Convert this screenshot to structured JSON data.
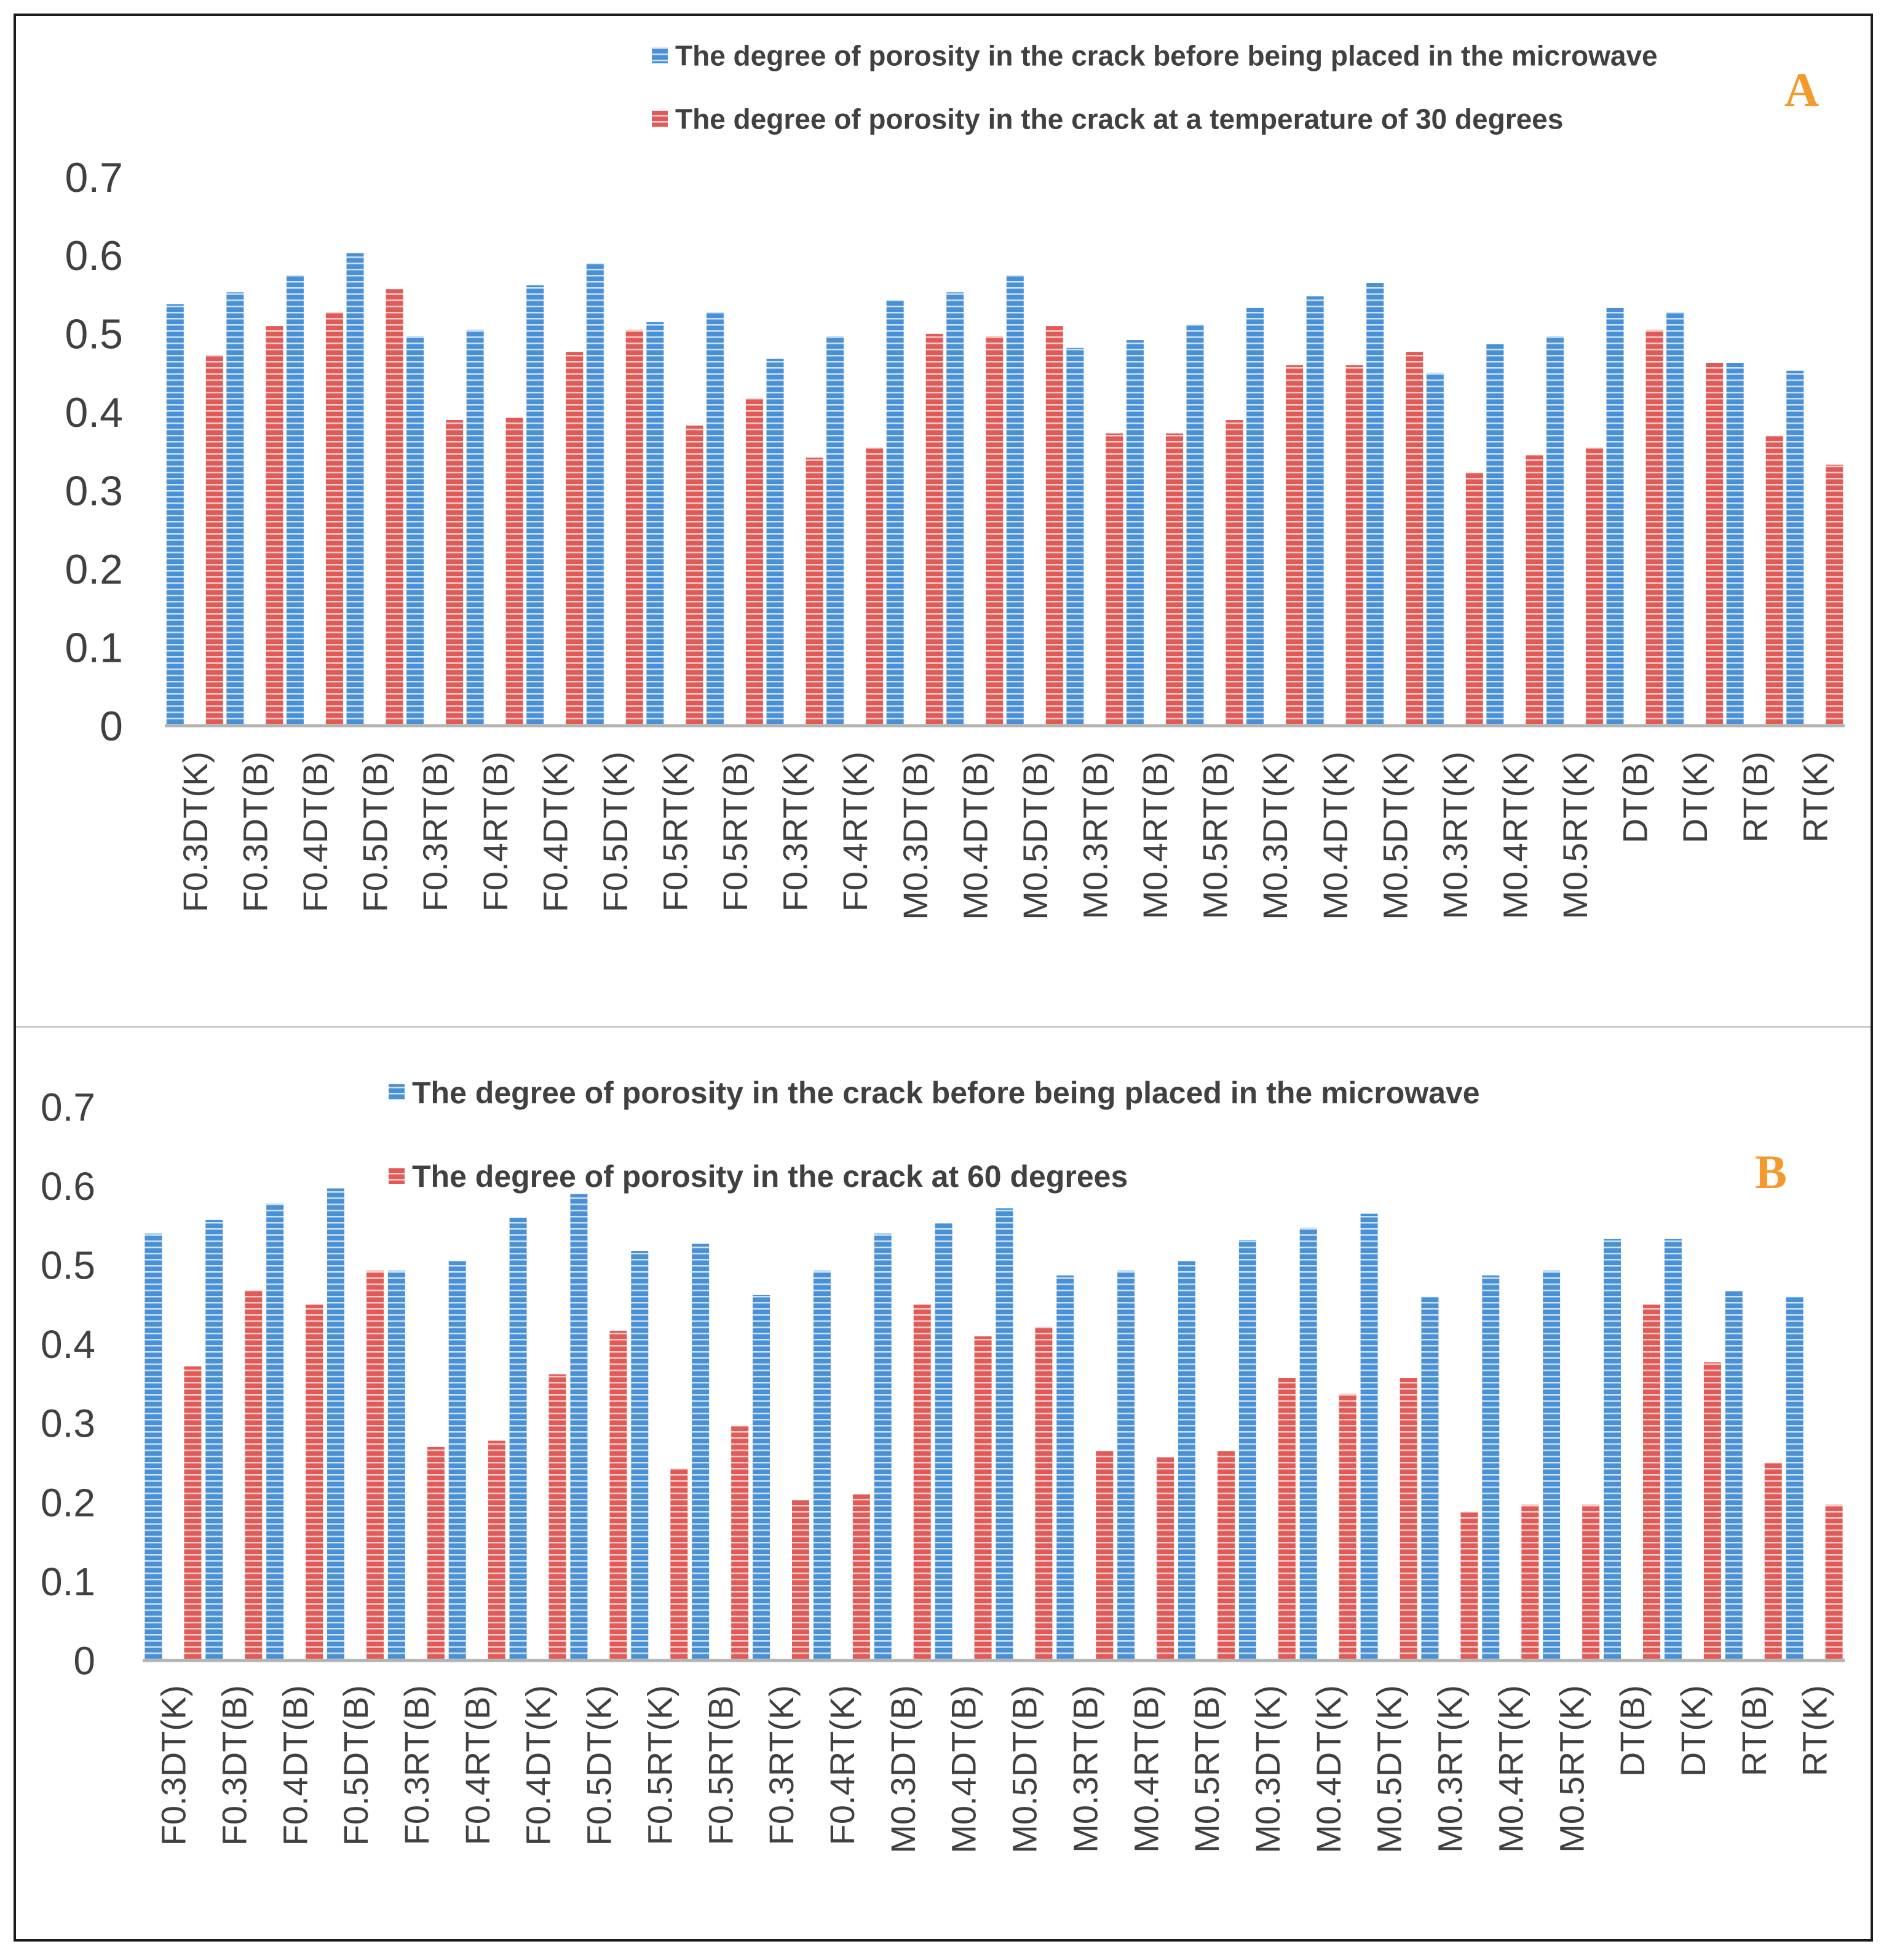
{
  "colors": {
    "blue": "#4a90d4",
    "blue_stripe": "#cde2f6",
    "red": "#e05a57",
    "red_stripe": "#f7cfcd",
    "axis": "#b3b3b3",
    "text": "#404040",
    "letter": "#f39a2d"
  },
  "chart_data": [
    {
      "type": "bar",
      "panel_label": "A",
      "title": "",
      "xlabel": "",
      "ylabel": "",
      "ylim": [
        0,
        0.7
      ],
      "yticks": [
        "0",
        "0.1",
        "0.2",
        "0.3",
        "0.4",
        "0.5",
        "0.6",
        "0.7"
      ],
      "grid": false,
      "legend": "top-right",
      "categories": [
        "F0.3DT(K)",
        "F0.3DT(B)",
        "F0.4DT(B)",
        "F0.5DT(B)",
        "F0.3RT(B)",
        "F0.4RT(B)",
        "F0.4DT(K)",
        "F0.5DT(K)",
        "F0.5RT(K)",
        "F0.5RT(B)",
        "F0.3RT(K)",
        "F0.4RT(K)",
        "M0.3DT(B)",
        "M0.4DT(B)",
        "M0.5DT(B)",
        "M0.3RT(B)",
        "M0.4RT(B)",
        "M0.5RT(B)",
        "M0.3DT(K)",
        "M0.4DT(K)",
        "M0.5DT(K)",
        "M0.3RT(K)",
        "M0.4RT(K)",
        "M0.5RT(K)",
        "DT(B)",
        "DT(K)",
        "RT(B)",
        "RT(K)"
      ],
      "series": [
        {
          "name": "The degree of porosity in the crack before being placed in the microwave",
          "color": "blue",
          "values": [
            0.538,
            0.553,
            0.575,
            0.603,
            0.497,
            0.505,
            0.562,
            0.59,
            0.515,
            0.528,
            0.468,
            0.497,
            0.543,
            0.553,
            0.575,
            0.482,
            0.492,
            0.512,
            0.533,
            0.548,
            0.565,
            0.45,
            0.487,
            0.497,
            0.533,
            0.528,
            0.463,
            0.453
          ]
        },
        {
          "name": "The degree of porosity in the crack at a temperature of 30 degrees",
          "color": "red",
          "values": [
            0.473,
            0.51,
            0.528,
            0.557,
            0.39,
            0.393,
            0.477,
            0.505,
            0.383,
            0.418,
            0.342,
            0.355,
            0.5,
            0.497,
            0.51,
            0.373,
            0.373,
            0.39,
            0.46,
            0.46,
            0.477,
            0.323,
            0.345,
            0.355,
            0.505,
            0.463,
            0.37,
            0.333
          ]
        }
      ]
    },
    {
      "type": "bar",
      "panel_label": "B",
      "title": "",
      "xlabel": "",
      "ylabel": "",
      "ylim": [
        0,
        0.7
      ],
      "yticks": [
        "0",
        "0.1",
        "0.2",
        "0.3",
        "0.4",
        "0.5",
        "0.6",
        "0.7"
      ],
      "grid": false,
      "legend": "top",
      "categories": [
        "F0.3DT(K)",
        "F0.3DT(B)",
        "F0.4DT(B)",
        "F0.5DT(B)",
        "F0.3RT(B)",
        "F0.4RT(B)",
        "F0.4DT(K)",
        "F0.5DT(K)",
        "F0.5RT(K)",
        "F0.5RT(B)",
        "F0.3RT(K)",
        "F0.4RT(K)",
        "M0.3DT(B)",
        "M0.4DT(B)",
        "M0.5DT(B)",
        "M0.3RT(B)",
        "M0.4RT(B)",
        "M0.5RT(B)",
        "M0.3DT(K)",
        "M0.4DT(K)",
        "M0.5DT(K)",
        "M0.3RT(K)",
        "M0.4RT(K)",
        "M0.5RT(K)",
        "DT(B)",
        "DT(K)",
        "RT(B)",
        "RT(K)"
      ],
      "series": [
        {
          "name": "The degree of porosity in the crack before being placed in the microwave",
          "color": "blue",
          "values": [
            0.54,
            0.557,
            0.578,
            0.597,
            0.493,
            0.505,
            0.56,
            0.59,
            0.518,
            0.527,
            0.462,
            0.493,
            0.54,
            0.553,
            0.572,
            0.487,
            0.493,
            0.505,
            0.532,
            0.547,
            0.565,
            0.46,
            0.487,
            0.493,
            0.533,
            0.533,
            0.467,
            0.46
          ]
        },
        {
          "name": "The degree of porosity in the crack at 60 degrees",
          "color": "red",
          "values": [
            0.372,
            0.468,
            0.45,
            0.493,
            0.27,
            0.278,
            0.362,
            0.417,
            0.243,
            0.297,
            0.203,
            0.21,
            0.45,
            0.41,
            0.422,
            0.265,
            0.257,
            0.265,
            0.357,
            0.337,
            0.357,
            0.188,
            0.197,
            0.197,
            0.45,
            0.377,
            0.25,
            0.197
          ]
        }
      ]
    }
  ]
}
